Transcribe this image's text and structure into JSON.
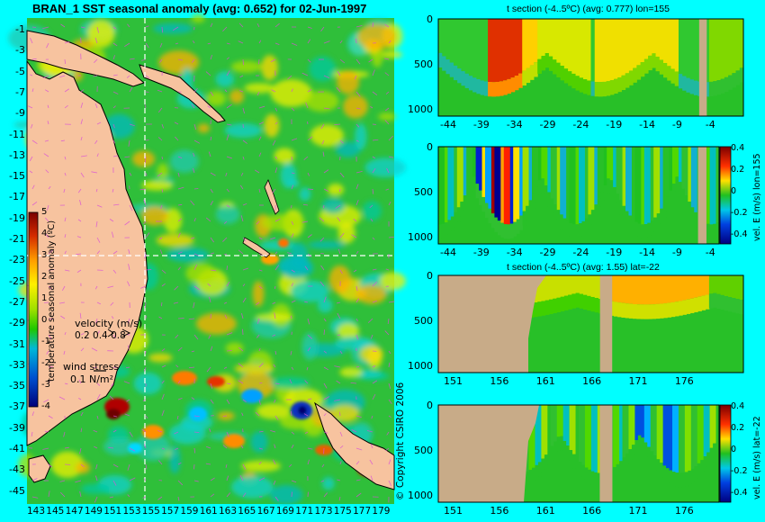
{
  "main": {
    "title": "BRAN_1 SST seasonal anomaly (avg: 0.652) for 02-Jun-1997",
    "colorbar_label": "temperature seasonal anomaly (ºC)",
    "velocity_label": "velocity (m/s)",
    "velocity_scale": "0.2 0.4 0.8",
    "wind_label": "wind stress",
    "wind_scale": "0.1 N/m²",
    "copyright": "© Copyright CSIRO 2006"
  },
  "panels": [
    {
      "title": "t section (-4..5ºC) (avg: 0.777) lon=155",
      "side_label": ""
    },
    {
      "title": "",
      "side_label": "vel. E (m/s) lon=155"
    },
    {
      "title": "t section (-4..5ºC) (avg: 1.55) lat=-22",
      "side_label": ""
    },
    {
      "title": "",
      "side_label": "vel. E (m/s) lat=-22"
    }
  ],
  "colors": {
    "background": "#00ffff",
    "land": "#f7c39f",
    "section_land": "#c8ab88",
    "crosshair": "#ffffff",
    "vector": "#d84fd8"
  },
  "chart_data": [
    {
      "type": "heatmap",
      "title": "BRAN_1 SST seasonal anomaly (avg: 0.652) for 02-Jun-1997",
      "y_ticks": [
        "-1",
        "-3",
        "-5",
        "-7",
        "-9",
        "-11",
        "-13",
        "-15",
        "-17",
        "-19",
        "-21",
        "-23",
        "-25",
        "-27",
        "-29",
        "-31",
        "-33",
        "-35",
        "-37",
        "-39",
        "-41",
        "-43",
        "-45"
      ],
      "x_ticks": [
        "143",
        "145",
        "147",
        "149",
        "151",
        "153",
        "155",
        "157",
        "159",
        "161",
        "163",
        "165",
        "167",
        "169",
        "171",
        "173",
        "175",
        "177",
        "179"
      ],
      "xlim": [
        142,
        180
      ],
      "ylim": [
        -45,
        0
      ],
      "colorbar": {
        "label": "temperature seasonal anomaly (ºC)",
        "ticks": [
          "5",
          "4",
          "3",
          "2",
          "1",
          "0",
          "-1",
          "-2",
          "-3",
          "-4"
        ],
        "range": [
          -4,
          5
        ]
      },
      "crosshair": {
        "lon": 155,
        "lat": -22
      }
    },
    {
      "type": "heatmap",
      "title": "t section (-4..5ºC) (avg: 0.777) lon=155",
      "x_ticks": [
        "-44",
        "-39",
        "-34",
        "-29",
        "-24",
        "-19",
        "-14",
        "-9",
        "-4"
      ],
      "y_ticks": [
        "0",
        "500",
        "1000"
      ],
      "xlim": [
        -45,
        0
      ],
      "ylim": [
        1050,
        0
      ]
    },
    {
      "type": "heatmap",
      "title": "",
      "x_ticks": [
        "-44",
        "-39",
        "-34",
        "-29",
        "-24",
        "-19",
        "-14",
        "-9",
        "-4"
      ],
      "y_ticks": [
        "0",
        "500",
        "1000"
      ],
      "colorbar": {
        "label": "vel. E (m/s) lon=155",
        "ticks": [
          "0.4",
          "0.2",
          "0",
          "-0.2",
          "-0.4"
        ]
      }
    },
    {
      "type": "heatmap",
      "title": "t section (-4..5ºC) (avg: 1.55) lat=-22",
      "x_ticks": [
        "151",
        "156",
        "161",
        "166",
        "171",
        "176"
      ],
      "y_ticks": [
        "0",
        "500",
        "1000"
      ],
      "xlim": [
        150,
        180
      ],
      "ylim": [
        1050,
        0
      ]
    },
    {
      "type": "heatmap",
      "title": "",
      "x_ticks": [
        "151",
        "156",
        "161",
        "166",
        "171",
        "176"
      ],
      "y_ticks": [
        "0",
        "500",
        "1000"
      ],
      "colorbar": {
        "label": "vel. E (m/s) lat=-22",
        "ticks": [
          "0.4",
          "0.2",
          "0",
          "-0.2",
          "-0.4"
        ]
      }
    }
  ]
}
